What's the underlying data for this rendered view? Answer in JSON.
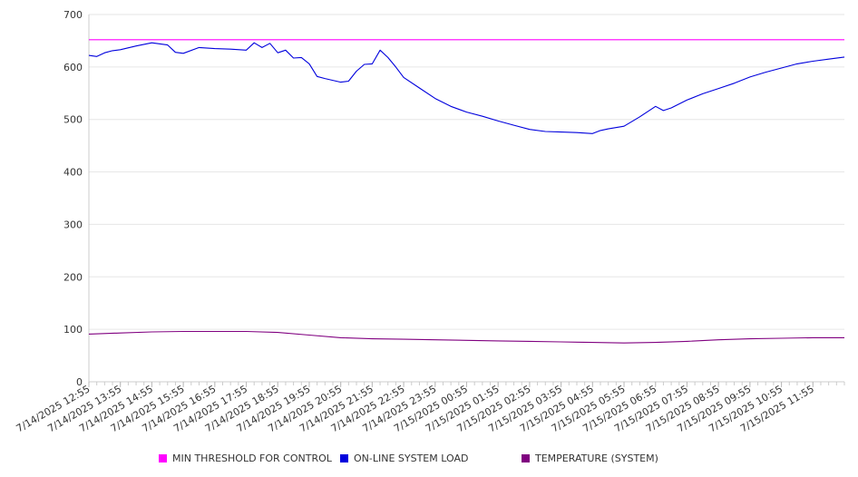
{
  "chart_data": {
    "type": "line",
    "title": "",
    "xlabel": "",
    "ylabel": "",
    "ylim": [
      0,
      700
    ],
    "yticks": [
      0,
      100,
      200,
      300,
      400,
      500,
      600,
      700
    ],
    "grid": true,
    "legend_position": "bottom",
    "x_start": "2025-07-14T12:55",
    "x_end": "2025-07-15T12:55",
    "x_tick_labels": [
      "7/14/2025 12:55",
      "7/14/2025 13:55",
      "7/14/2025 14:55",
      "7/14/2025 15:55",
      "7/14/2025 16:55",
      "7/14/2025 17:55",
      "7/14/2025 18:55",
      "7/14/2025 19:55",
      "7/14/2025 20:55",
      "7/14/2025 21:55",
      "7/14/2025 22:55",
      "7/14/2025 23:55",
      "7/15/2025 00:55",
      "7/15/2025 01:55",
      "7/15/2025 02:55",
      "7/15/2025 03:55",
      "7/15/2025 04:55",
      "7/15/2025 05:55",
      "7/15/2025 06:55",
      "7/15/2025 07:55",
      "7/15/2025 08:55",
      "7/15/2025 09:55",
      "7/15/2025 10:55",
      "7/15/2025 11:55"
    ],
    "series": [
      {
        "name": "MIN THRESHOLD FOR CONTROL",
        "color": "#ff00ff",
        "points": [
          [
            "2025-07-14T12:55",
            652
          ],
          [
            "2025-07-15T12:55",
            652
          ]
        ]
      },
      {
        "name": "ON-LINE SYSTEM LOAD",
        "color": "#0000dd",
        "points": [
          [
            "2025-07-14T12:55",
            622
          ],
          [
            "2025-07-14T13:10",
            620
          ],
          [
            "2025-07-14T13:25",
            627
          ],
          [
            "2025-07-14T13:40",
            631
          ],
          [
            "2025-07-14T13:55",
            633
          ],
          [
            "2025-07-14T14:25",
            640
          ],
          [
            "2025-07-14T14:55",
            646
          ],
          [
            "2025-07-14T15:25",
            642
          ],
          [
            "2025-07-14T15:40",
            628
          ],
          [
            "2025-07-14T15:55",
            626
          ],
          [
            "2025-07-14T16:25",
            637
          ],
          [
            "2025-07-14T16:55",
            635
          ],
          [
            "2025-07-14T17:25",
            634
          ],
          [
            "2025-07-14T17:55",
            632
          ],
          [
            "2025-07-14T18:10",
            646
          ],
          [
            "2025-07-14T18:25",
            637
          ],
          [
            "2025-07-14T18:40",
            645
          ],
          [
            "2025-07-14T18:55",
            627
          ],
          [
            "2025-07-14T19:10",
            632
          ],
          [
            "2025-07-14T19:25",
            617
          ],
          [
            "2025-07-14T19:40",
            618
          ],
          [
            "2025-07-14T19:55",
            606
          ],
          [
            "2025-07-14T20:10",
            582
          ],
          [
            "2025-07-14T20:25",
            578
          ],
          [
            "2025-07-14T20:55",
            571
          ],
          [
            "2025-07-14T21:10",
            573
          ],
          [
            "2025-07-14T21:25",
            592
          ],
          [
            "2025-07-14T21:40",
            605
          ],
          [
            "2025-07-14T21:55",
            606
          ],
          [
            "2025-07-14T22:10",
            632
          ],
          [
            "2025-07-14T22:25",
            618
          ],
          [
            "2025-07-14T22:40",
            600
          ],
          [
            "2025-07-14T22:55",
            580
          ],
          [
            "2025-07-14T23:25",
            560
          ],
          [
            "2025-07-14T23:55",
            540
          ],
          [
            "2025-07-15T00:25",
            525
          ],
          [
            "2025-07-15T00:55",
            514
          ],
          [
            "2025-07-15T01:25",
            506
          ],
          [
            "2025-07-15T01:55",
            497
          ],
          [
            "2025-07-15T02:25",
            489
          ],
          [
            "2025-07-15T02:55",
            481
          ],
          [
            "2025-07-15T03:25",
            477
          ],
          [
            "2025-07-15T03:55",
            476
          ],
          [
            "2025-07-15T04:25",
            475
          ],
          [
            "2025-07-15T04:55",
            473
          ],
          [
            "2025-07-15T05:10",
            479
          ],
          [
            "2025-07-15T05:25",
            482
          ],
          [
            "2025-07-15T05:55",
            487
          ],
          [
            "2025-07-15T06:25",
            505
          ],
          [
            "2025-07-15T06:55",
            525
          ],
          [
            "2025-07-15T07:10",
            517
          ],
          [
            "2025-07-15T07:25",
            522
          ],
          [
            "2025-07-15T07:55",
            537
          ],
          [
            "2025-07-15T08:25",
            549
          ],
          [
            "2025-07-15T08:55",
            559
          ],
          [
            "2025-07-15T09:25",
            569
          ],
          [
            "2025-07-15T09:55",
            581
          ],
          [
            "2025-07-15T10:25",
            590
          ],
          [
            "2025-07-15T10:55",
            598
          ],
          [
            "2025-07-15T11:25",
            606
          ],
          [
            "2025-07-15T11:55",
            611
          ],
          [
            "2025-07-15T12:25",
            615
          ],
          [
            "2025-07-15T12:55",
            619
          ]
        ]
      },
      {
        "name": "TEMPERATURE (SYSTEM)",
        "color": "#800080",
        "points": [
          [
            "2025-07-14T12:55",
            91
          ],
          [
            "2025-07-14T13:55",
            93
          ],
          [
            "2025-07-14T14:55",
            95
          ],
          [
            "2025-07-14T15:55",
            96
          ],
          [
            "2025-07-14T16:55",
            96
          ],
          [
            "2025-07-14T17:55",
            96
          ],
          [
            "2025-07-14T18:55",
            94
          ],
          [
            "2025-07-14T19:55",
            89
          ],
          [
            "2025-07-14T20:55",
            84
          ],
          [
            "2025-07-14T21:55",
            82
          ],
          [
            "2025-07-14T22:55",
            81
          ],
          [
            "2025-07-14T23:55",
            80
          ],
          [
            "2025-07-15T00:55",
            79
          ],
          [
            "2025-07-15T01:55",
            78
          ],
          [
            "2025-07-15T02:55",
            77
          ],
          [
            "2025-07-15T03:55",
            76
          ],
          [
            "2025-07-15T04:55",
            75
          ],
          [
            "2025-07-15T05:55",
            74
          ],
          [
            "2025-07-15T06:55",
            75
          ],
          [
            "2025-07-15T07:55",
            77
          ],
          [
            "2025-07-15T08:55",
            80
          ],
          [
            "2025-07-15T09:55",
            82
          ],
          [
            "2025-07-15T10:55",
            83
          ],
          [
            "2025-07-15T11:55",
            84
          ],
          [
            "2025-07-15T12:55",
            84
          ]
        ]
      }
    ]
  }
}
